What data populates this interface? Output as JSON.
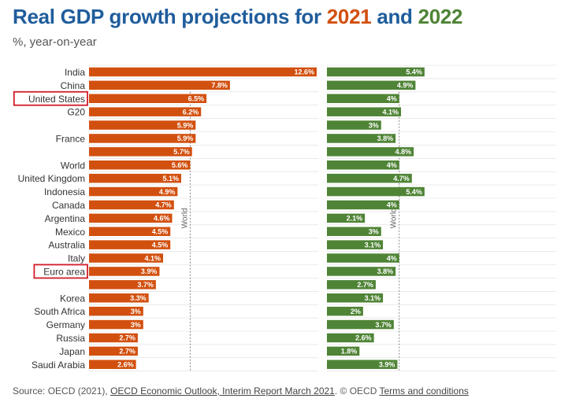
{
  "title": {
    "prefix": "Real GDP growth projections for ",
    "year1": "2021",
    "joiner": " and ",
    "year2": "2022"
  },
  "subtitle": "%, year-on-year",
  "colors": {
    "title": "#1f5d9c",
    "series_2021": "#d2500f",
    "series_2022": "#4f8436",
    "highlight_box": "#d21c2a",
    "grid": "#dddddd",
    "reference": "#888888"
  },
  "chart_data": {
    "type": "bar",
    "orientation": "horizontal",
    "categories": [
      "India",
      "China",
      "United States",
      "G20",
      "",
      "France",
      "",
      "World",
      "United Kingdom",
      "Indonesia",
      "Canada",
      "Argentina",
      "Mexico",
      "Australia",
      "Italy",
      "Euro area",
      "",
      "Korea",
      "South Africa",
      "Germany",
      "Russia",
      "Japan",
      "Saudi Arabia"
    ],
    "highlighted": [
      "United States",
      "Euro area"
    ],
    "series": [
      {
        "year": "2021",
        "values": [
          12.6,
          7.8,
          6.5,
          6.2,
          5.9,
          5.9,
          5.7,
          5.6,
          5.1,
          4.9,
          4.7,
          4.6,
          4.5,
          4.5,
          4.1,
          3.9,
          3.7,
          3.3,
          3,
          3,
          2.7,
          2.7,
          2.6
        ],
        "labels": [
          "12.6%",
          "7.8%",
          "6.5%",
          "6.2%",
          "5.9%",
          "5.9%",
          "5.7%",
          "5.6%",
          "5.1%",
          "4.9%",
          "4.7%",
          "4.6%",
          "4.5%",
          "4.5%",
          "4.1%",
          "3.9%",
          "3.7%",
          "3.3%",
          "3%",
          "3%",
          "2.7%",
          "2.7%",
          "2.6%"
        ],
        "xlim": [
          0,
          12.6
        ],
        "reference": {
          "label": "World",
          "value": 5.6
        }
      },
      {
        "year": "2022",
        "values": [
          5.4,
          4.9,
          4,
          4.1,
          3,
          3.8,
          4.8,
          4,
          4.7,
          5.4,
          4,
          2.1,
          3,
          3.1,
          4,
          3.8,
          2.7,
          3.1,
          2,
          3.7,
          2.6,
          1.8,
          3.9
        ],
        "labels": [
          "5.4%",
          "4.9%",
          "4%",
          "4.1%",
          "3%",
          "3.8%",
          "4.8%",
          "4%",
          "4.7%",
          "5.4%",
          "4%",
          "2.1%",
          "3%",
          "3.1%",
          "4%",
          "3.8%",
          "2.7%",
          "3.1%",
          "2%",
          "3.7%",
          "2.6%",
          "1.8%",
          "3.9%"
        ],
        "xlim": [
          0,
          12.6
        ],
        "reference": {
          "label": "World",
          "value": 4
        }
      }
    ],
    "grid": true
  },
  "source": {
    "prefix": "Source: OECD (2021), ",
    "link1": "OECD Economic Outlook, Interim Report March 2021",
    "middle": ". © OECD ",
    "link2": "Terms and conditions"
  }
}
